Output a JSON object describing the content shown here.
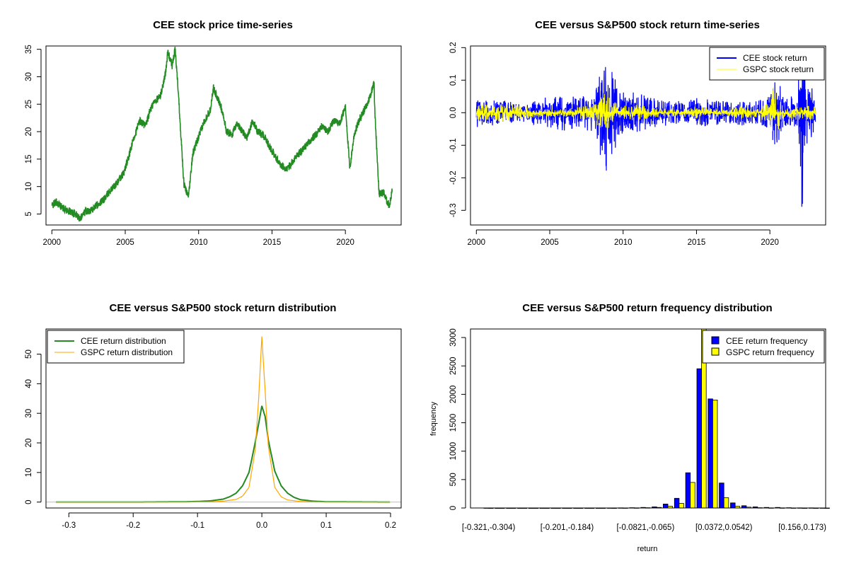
{
  "colors": {
    "green": "#228B22",
    "blue": "#0000FF",
    "yellow": "#FFFF00",
    "orange": "#FFA500",
    "gray": "#BEBEBE"
  },
  "chart_data": [
    {
      "id": "price",
      "type": "line",
      "title": "CEE stock price time-series",
      "xlabel": "",
      "ylabel": "",
      "xlim": [
        1999.6,
        2023.8
      ],
      "ylim": [
        3.0,
        35.6
      ],
      "xticks": [
        2000,
        2005,
        2010,
        2015,
        2020
      ],
      "xtick_labels": [
        "2000",
        "2005",
        "2010",
        "2015",
        "2020"
      ],
      "yticks": [
        5,
        10,
        15,
        20,
        25,
        30,
        35
      ],
      "ytick_labels": [
        "5",
        "10",
        "15",
        "20",
        "25",
        "30",
        "35"
      ],
      "series": [
        {
          "name": "CEE",
          "color_key": "green",
          "x": [
            2000,
            2000.3,
            2000.8,
            2001.2,
            2001.6,
            2001.9,
            2002.3,
            2002.7,
            2003.0,
            2003.5,
            2003.9,
            2004.4,
            2004.9,
            2005.2,
            2005.6,
            2006.0,
            2006.4,
            2006.7,
            2007.0,
            2007.4,
            2007.7,
            2007.9,
            2008.2,
            2008.4,
            2008.6,
            2008.8,
            2009.0,
            2009.3,
            2009.6,
            2010.0,
            2010.4,
            2010.8,
            2011.0,
            2011.3,
            2011.6,
            2011.9,
            2012.3,
            2012.6,
            2013.0,
            2013.3,
            2013.7,
            2014.0,
            2014.4,
            2014.8,
            2015.2,
            2015.6,
            2016.0,
            2016.5,
            2017.0,
            2017.5,
            2018.0,
            2018.4,
            2018.8,
            2019.2,
            2019.6,
            2020.0,
            2020.1,
            2020.3,
            2020.6,
            2021.0,
            2021.5,
            2021.8,
            2021.95,
            2022.0,
            2022.3,
            2022.6,
            2022.8,
            2023.0,
            2023.2
          ],
          "values": [
            6.5,
            7.2,
            6.0,
            5.5,
            5.0,
            4.2,
            5.5,
            5.8,
            6.5,
            7.5,
            9.0,
            10.5,
            12.5,
            15.0,
            19.0,
            22.0,
            21.0,
            24.0,
            25.5,
            26.5,
            30.0,
            34.5,
            32.0,
            35.0,
            28.0,
            19.0,
            10.5,
            8.0,
            16.0,
            19.0,
            22.0,
            24.0,
            28.0,
            26.0,
            24.0,
            20.0,
            19.5,
            21.5,
            20.0,
            19.0,
            22.0,
            20.0,
            19.5,
            17.5,
            15.5,
            14.0,
            13.0,
            15.0,
            16.5,
            18.0,
            19.5,
            21.0,
            20.0,
            22.0,
            21.5,
            24.5,
            21.0,
            13.2,
            19.5,
            22.5,
            25.0,
            27.5,
            29.5,
            24.0,
            8.5,
            9.0,
            7.5,
            6.5,
            9.5
          ]
        }
      ]
    },
    {
      "id": "returns",
      "type": "line",
      "title": "CEE versus S&P500 stock return time-series",
      "xlabel": "",
      "ylabel": "",
      "xlim": [
        1999.6,
        2023.8
      ],
      "ylim": [
        -0.345,
        0.205
      ],
      "xticks": [
        2000,
        2005,
        2010,
        2015,
        2020
      ],
      "xtick_labels": [
        "2000",
        "2005",
        "2010",
        "2015",
        "2020"
      ],
      "yticks": [
        -0.3,
        -0.2,
        -0.1,
        0.0,
        0.1,
        0.2
      ],
      "ytick_labels": [
        "-0.3",
        "-0.2",
        "-0.1",
        "0.0",
        "0.1",
        "0.2"
      ],
      "legend_position": "top-right",
      "series": [
        {
          "name": "CEE stock return",
          "color_key": "blue",
          "x": [
            2000,
            2001,
            2002,
            2003,
            2004,
            2005,
            2006,
            2007,
            2008,
            2008.8,
            2009.3,
            2010,
            2011,
            2012,
            2013,
            2014,
            2015,
            2016,
            2017,
            2018,
            2019,
            2020,
            2020.2,
            2021,
            2021.8,
            2022.2,
            2022.5,
            2023.1
          ],
          "amplitude": [
            0.045,
            0.04,
            0.035,
            0.03,
            0.04,
            0.05,
            0.055,
            0.05,
            0.06,
            0.185,
            0.12,
            0.07,
            0.06,
            0.045,
            0.04,
            0.035,
            0.045,
            0.04,
            0.035,
            0.04,
            0.035,
            0.05,
            0.14,
            0.05,
            0.05,
            0.32,
            0.1,
            0.06
          ]
        },
        {
          "name": "GSPC stock return",
          "color_key": "yellow",
          "x": [
            2000,
            2001,
            2002,
            2003,
            2004,
            2005,
            2006,
            2007,
            2008,
            2008.8,
            2009.3,
            2010,
            2011,
            2012,
            2013,
            2014,
            2015,
            2016,
            2017,
            2018,
            2019,
            2020,
            2020.2,
            2021,
            2022,
            2023.1
          ],
          "amplitude": [
            0.025,
            0.025,
            0.03,
            0.022,
            0.015,
            0.012,
            0.012,
            0.018,
            0.03,
            0.06,
            0.035,
            0.022,
            0.025,
            0.015,
            0.012,
            0.012,
            0.018,
            0.016,
            0.01,
            0.02,
            0.015,
            0.03,
            0.09,
            0.015,
            0.025,
            0.02
          ]
        }
      ],
      "legend": [
        "CEE stock return",
        "GSPC stock return"
      ]
    },
    {
      "id": "density",
      "type": "line",
      "title": "CEE versus S&P500 stock return distribution",
      "xlabel": "",
      "ylabel": "",
      "xlim": [
        -0.3355,
        0.2165
      ],
      "ylim": [
        -2.0,
        58.5
      ],
      "xticks": [
        -0.3,
        -0.2,
        -0.1,
        0.0,
        0.1,
        0.2
      ],
      "xtick_labels": [
        "-0.3",
        "-0.2",
        "-0.1",
        "0.0",
        "0.1",
        "0.2"
      ],
      "yticks": [
        0,
        10,
        20,
        30,
        40,
        50
      ],
      "ytick_labels": [
        "0",
        "10",
        "20",
        "30",
        "40",
        "50"
      ],
      "legend_position": "top-left",
      "series": [
        {
          "name": "CEE return distribution",
          "color_key": "green",
          "x": [
            -0.32,
            -0.2,
            -0.12,
            -0.1,
            -0.08,
            -0.06,
            -0.05,
            -0.04,
            -0.03,
            -0.02,
            -0.01,
            0.0,
            0.005,
            0.01,
            0.02,
            0.03,
            0.04,
            0.05,
            0.06,
            0.08,
            0.1,
            0.2
          ],
          "values": [
            0,
            0,
            0.1,
            0.2,
            0.4,
            1.0,
            1.8,
            3.0,
            5.5,
            10.0,
            20.5,
            32.5,
            29.0,
            21.0,
            10.5,
            5.5,
            3.0,
            1.6,
            0.8,
            0.3,
            0.1,
            0
          ]
        },
        {
          "name": "GSPC return distribution",
          "color_key": "orange",
          "x": [
            -0.32,
            -0.2,
            -0.12,
            -0.1,
            -0.08,
            -0.06,
            -0.04,
            -0.03,
            -0.02,
            -0.01,
            -0.005,
            0.0,
            0.005,
            0.01,
            0.02,
            0.03,
            0.04,
            0.06,
            0.08,
            0.1,
            0.2
          ],
          "values": [
            0,
            0,
            0,
            0.05,
            0.1,
            0.3,
            0.9,
            2.0,
            5.0,
            18.0,
            35.0,
            56.0,
            38.0,
            19.0,
            5.0,
            1.8,
            0.7,
            0.2,
            0.05,
            0,
            0
          ]
        }
      ],
      "baseline": 0,
      "legend": [
        "CEE return distribution",
        "GSPC return distribution"
      ]
    },
    {
      "id": "frequency",
      "type": "bar",
      "title": "CEE versus S&P500 return frequency distribution",
      "xlabel": "return",
      "ylabel": "frequency",
      "ylim": [
        0,
        3150
      ],
      "yticks": [
        0,
        500,
        1000,
        1500,
        2000,
        2500,
        3000
      ],
      "ytick_labels": [
        "0",
        "500",
        "1000",
        "1500",
        "2000",
        "2500",
        "3000"
      ],
      "legend_position": "top-right",
      "tick_labels": [
        {
          "bin_index": 0,
          "label": "[-0.321,-0.304)"
        },
        {
          "bin_index": 7,
          "label": "[-0.201,-0.184)"
        },
        {
          "bin_index": 14,
          "label": "[-0.0821,-0.065)"
        },
        {
          "bin_index": 21,
          "label": "[0.0372,0.0542)"
        },
        {
          "bin_index": 28,
          "label": "[0.156,0.173)"
        }
      ],
      "series": [
        {
          "name": "CEE return frequency",
          "color_key": "blue",
          "values": [
            1,
            0,
            0,
            0,
            0,
            0,
            0,
            0,
            0,
            0,
            0,
            1,
            2,
            5,
            10,
            20,
            70,
            170,
            620,
            2450,
            1920,
            440,
            90,
            40,
            20,
            10,
            10,
            5,
            3,
            2,
            1
          ]
        },
        {
          "name": "GSPC return frequency",
          "color_key": "yellow",
          "values": [
            0,
            0,
            0,
            0,
            0,
            0,
            0,
            0,
            0,
            0,
            0,
            0,
            1,
            2,
            5,
            10,
            30,
            80,
            450,
            3150,
            1900,
            180,
            30,
            15,
            5,
            3,
            2,
            1,
            0,
            0,
            0
          ]
        }
      ],
      "legend": [
        "CEE return frequency",
        "GSPC return frequency"
      ]
    }
  ]
}
